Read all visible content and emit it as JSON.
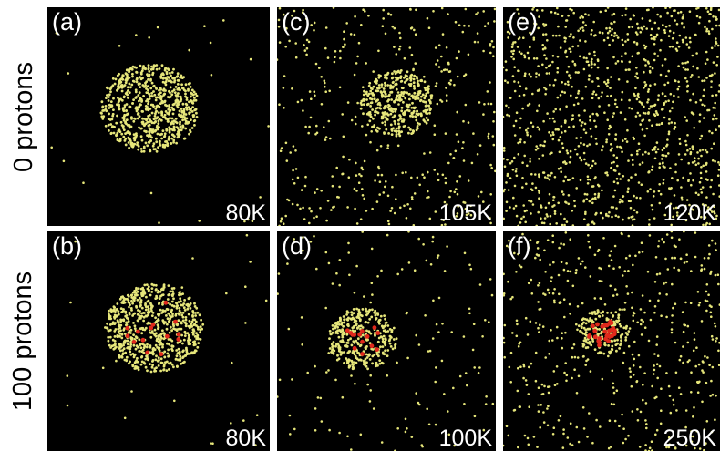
{
  "rows": [
    {
      "label": "0 protons"
    },
    {
      "label": "100 protons"
    }
  ],
  "panels": [
    {
      "id": "a",
      "label": "(a)",
      "temperature": "80K",
      "protons": 0,
      "cluster_radius": 0.21,
      "red_count": 0,
      "gas_count": 30
    },
    {
      "id": "b",
      "label": "(b)",
      "temperature": "80K",
      "protons": 100,
      "cluster_radius": 0.21,
      "red_count": 14,
      "gas_count": 30
    },
    {
      "id": "c",
      "label": "(c)",
      "temperature": "105K",
      "protons": 0,
      "cluster_radius": 0.16,
      "red_count": 0,
      "gas_count": 430
    },
    {
      "id": "d",
      "label": "(d)",
      "temperature": "100K",
      "protons": 100,
      "cluster_radius": 0.15,
      "red_count": 14,
      "gas_count": 150
    },
    {
      "id": "e",
      "label": "(e)",
      "temperature": "120K",
      "protons": 0,
      "cluster_radius": 0,
      "red_count": 0,
      "gas_count": 1100
    },
    {
      "id": "f",
      "label": "(f)",
      "temperature": "250K",
      "protons": 100,
      "cluster_radius": 0.11,
      "red_count": 30,
      "gas_count": 520
    }
  ],
  "colors": {
    "background": "#000000",
    "particle": "#e6e67a",
    "proton": "#e0291c",
    "text": "#ffffff"
  }
}
